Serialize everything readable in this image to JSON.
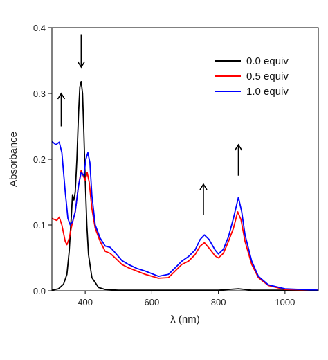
{
  "chart_data": {
    "type": "line",
    "xlabel": "λ (nm)",
    "ylabel": "Absorbance",
    "xlim": [
      300,
      1100
    ],
    "ylim": [
      0,
      0.4
    ],
    "x_ticks": [
      400,
      600,
      800,
      1000
    ],
    "y_ticks": [
      0.0,
      0.1,
      0.2,
      0.3,
      0.4
    ],
    "y_tick_labels": [
      "0.0",
      "0.1",
      "0.2",
      "0.3",
      "0.4"
    ],
    "grid": false,
    "legend_position": "top-right",
    "series": [
      {
        "name": "0.0 equiv",
        "color": "#000000",
        "points": [
          [
            300,
            0.001
          ],
          [
            320,
            0.003
          ],
          [
            335,
            0.01
          ],
          [
            345,
            0.025
          ],
          [
            352,
            0.06
          ],
          [
            358,
            0.11
          ],
          [
            362,
            0.146
          ],
          [
            366,
            0.138
          ],
          [
            370,
            0.15
          ],
          [
            375,
            0.2
          ],
          [
            380,
            0.27
          ],
          [
            384,
            0.31
          ],
          [
            388,
            0.318
          ],
          [
            392,
            0.3
          ],
          [
            396,
            0.24
          ],
          [
            400,
            0.17
          ],
          [
            405,
            0.1
          ],
          [
            410,
            0.055
          ],
          [
            420,
            0.02
          ],
          [
            440,
            0.005
          ],
          [
            460,
            0.002
          ],
          [
            500,
            0.001
          ],
          [
            600,
            0.001
          ],
          [
            700,
            0.001
          ],
          [
            800,
            0.001
          ],
          [
            860,
            0.003
          ],
          [
            900,
            0.001
          ],
          [
            1000,
            0.001
          ],
          [
            1100,
            0.001
          ]
        ]
      },
      {
        "name": "0.5 equiv",
        "color": "#ff0000",
        "points": [
          [
            300,
            0.11
          ],
          [
            315,
            0.107
          ],
          [
            322,
            0.112
          ],
          [
            330,
            0.1
          ],
          [
            340,
            0.075
          ],
          [
            345,
            0.07
          ],
          [
            352,
            0.08
          ],
          [
            360,
            0.1
          ],
          [
            370,
            0.12
          ],
          [
            380,
            0.16
          ],
          [
            388,
            0.183
          ],
          [
            394,
            0.175
          ],
          [
            400,
            0.168
          ],
          [
            406,
            0.18
          ],
          [
            412,
            0.165
          ],
          [
            420,
            0.125
          ],
          [
            430,
            0.095
          ],
          [
            445,
            0.075
          ],
          [
            460,
            0.06
          ],
          [
            475,
            0.057
          ],
          [
            490,
            0.05
          ],
          [
            510,
            0.04
          ],
          [
            530,
            0.035
          ],
          [
            555,
            0.03
          ],
          [
            580,
            0.025
          ],
          [
            620,
            0.019
          ],
          [
            650,
            0.02
          ],
          [
            670,
            0.03
          ],
          [
            690,
            0.04
          ],
          [
            710,
            0.045
          ],
          [
            730,
            0.055
          ],
          [
            745,
            0.068
          ],
          [
            758,
            0.073
          ],
          [
            772,
            0.065
          ],
          [
            790,
            0.053
          ],
          [
            800,
            0.05
          ],
          [
            815,
            0.057
          ],
          [
            830,
            0.075
          ],
          [
            845,
            0.095
          ],
          [
            858,
            0.12
          ],
          [
            868,
            0.108
          ],
          [
            880,
            0.075
          ],
          [
            900,
            0.04
          ],
          [
            920,
            0.02
          ],
          [
            950,
            0.008
          ],
          [
            1000,
            0.002
          ],
          [
            1100,
            0.001
          ]
        ]
      },
      {
        "name": "1.0 equiv",
        "color": "#0000ff",
        "points": [
          [
            300,
            0.227
          ],
          [
            312,
            0.222
          ],
          [
            322,
            0.226
          ],
          [
            330,
            0.21
          ],
          [
            340,
            0.15
          ],
          [
            348,
            0.11
          ],
          [
            355,
            0.1
          ],
          [
            362,
            0.105
          ],
          [
            370,
            0.12
          ],
          [
            380,
            0.16
          ],
          [
            388,
            0.18
          ],
          [
            396,
            0.175
          ],
          [
            402,
            0.2
          ],
          [
            408,
            0.21
          ],
          [
            414,
            0.195
          ],
          [
            420,
            0.145
          ],
          [
            430,
            0.1
          ],
          [
            445,
            0.08
          ],
          [
            460,
            0.068
          ],
          [
            475,
            0.066
          ],
          [
            490,
            0.058
          ],
          [
            510,
            0.046
          ],
          [
            530,
            0.04
          ],
          [
            555,
            0.034
          ],
          [
            580,
            0.03
          ],
          [
            620,
            0.022
          ],
          [
            650,
            0.025
          ],
          [
            670,
            0.035
          ],
          [
            690,
            0.045
          ],
          [
            710,
            0.052
          ],
          [
            730,
            0.062
          ],
          [
            745,
            0.078
          ],
          [
            758,
            0.085
          ],
          [
            772,
            0.078
          ],
          [
            790,
            0.062
          ],
          [
            800,
            0.056
          ],
          [
            815,
            0.063
          ],
          [
            830,
            0.082
          ],
          [
            845,
            0.11
          ],
          [
            860,
            0.142
          ],
          [
            870,
            0.12
          ],
          [
            880,
            0.085
          ],
          [
            900,
            0.045
          ],
          [
            920,
            0.022
          ],
          [
            950,
            0.009
          ],
          [
            1000,
            0.003
          ],
          [
            1100,
            0.001
          ]
        ]
      }
    ],
    "annotations": [
      {
        "type": "arrow",
        "direction": "up",
        "x": 328,
        "y_from": 0.25,
        "y_to": 0.3
      },
      {
        "type": "arrow",
        "direction": "down",
        "x": 388,
        "y_from": 0.39,
        "y_to": 0.34
      },
      {
        "type": "arrow",
        "direction": "up",
        "x": 755,
        "y_from": 0.115,
        "y_to": 0.162
      },
      {
        "type": "arrow",
        "direction": "up",
        "x": 860,
        "y_from": 0.175,
        "y_to": 0.222
      }
    ]
  }
}
